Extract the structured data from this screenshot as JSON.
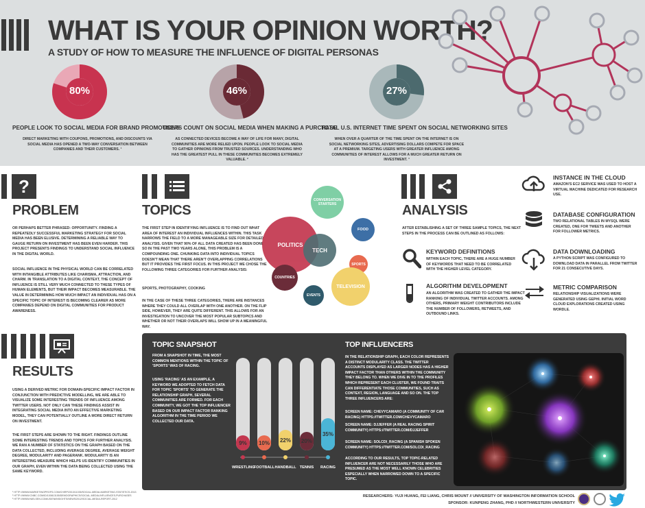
{
  "header": {
    "title": "WHAT IS YOUR OPINION WORTH?",
    "subtitle": "A STUDY OF HOW TO MEASURE THE INFLUENCE OF DIGITAL PERSONAS"
  },
  "stats": [
    {
      "value": "80%",
      "percent": 80,
      "color": "#c8334f",
      "track": "#e9a8b6",
      "heading": "PEOPLE LOOK TO SOCIAL MEDIA FOR BRAND PROMOTIONS",
      "text": "DIRECT MARKETING WITH COUPONS, PROMOTIONS, AND DISCOUNTS VIA SOCIAL MEDIA HAS OPENED A TWO-WAY CONVERSATION BETWEEN COMPANIES AND THEIR CUSTOMERS. ¹"
    },
    {
      "value": "46%",
      "percent": 46,
      "color": "#6a2a35",
      "track": "#b7a3a8",
      "heading": "USERS COUNT ON SOCIAL MEDIA WHEN MAKING A PURCHASE",
      "text": "AS CONNECTED DEVICES BECOME A WAY OF LIFE FOR MANY, DIGITAL COMMUNITIES ARE MORE RELIED UPON. PEOPLE LOOK TO SOCIAL MEDIA TO GATHER OPINIONS FROM TRUSTED SOURCES. UNDERSTANDING WHO HAS THE GREATEST PULL IN THESE COMMUNITIES BECOMES EXTREMELY VALUABLE. ²"
    },
    {
      "value": "27%",
      "percent": 27,
      "color": "#4c6a6e",
      "track": "#a9b8ba",
      "heading": "TOTAL U.S. INTERNET TIME SPENT ON SOCIAL NETWORKING SITES",
      "text": "WHEN OVER A QUARTER OF THE TIME SPENT ON THE INTERNET IS ON SOCIAL NETWORKING SITES, ADVERTISING DOLLARS COMPETE FOR SPACE AT A PREMIUM. TARGETING USERS WITH GREATER INFLUENCE AMONG COMMUNITIES OF INTEREST ALLOWS FOR A MUCH GREATER RETURN ON INVESTMENT. ³"
    }
  ],
  "problem": {
    "icon": "question-icon",
    "heading": "PROBLEM",
    "p1": "OR PERHAPS BETTER PHRASED: OPPORTUNITY. FINDING A REPEATEDLY SUCCESSFUL MARKETING STRATEGY FOR SOCIAL MEDIA HAS BEEN ELUSIVE. DETERMINING A RELIABLE WAY TO GAUGE RETURN ON INVESTMENT HAS BEEN EVEN HARDER. THIS PROJECT PRESENTS FINDINGS TO UNDERSTAND SOCIAL INFLUENCE IN THE DIGITAL WORLD.",
    "p2": "SOCIAL INFLUENCE IN THE PHYSICAL WORLD CAN BE CORRELATED WITH INTANGIBLE ATTRIBUTES LIKE CHARISMA, ATTRACTION, AND CHARM. IN TRANSLATION TO A DIGITAL CONTEXT, THE CONCEPT OF INFLUENCE IS STILL VERY MUCH CONNECTED TO THESE TYPES OF HUMAN ELEMENTS, BUT THEIR IMPACT BECOMES MEASURABLE. THE VALUE IN DETERMINING HOW MUCH IMPACT AN INDIVIDUAL HAS ON A SPECIFIC TOPIC OF INTEREST IS BECOMING CLEARER AS MORE COMPANIES DEPEND ON DIGITAL COMMUNITIES FOR PRODUCT AWARENESS."
  },
  "topics": {
    "icon": "list-icon",
    "heading": "TOPICS",
    "p1": "THE FIRST STEP IN IDENTIFYING INFLUENCE IS TO FIND OUT WHAT AREA OF INTEREST AN INDIVIDUAL INFLUENCES WITHIN. THIS TASK NARROWS THE FIELD TO A MORE MANAGEABLE SIZE FOR DETAILED ANALYSIS. GIVEN THAT 90% OF ALL DATA CREATED HAS BEEN DONE SO IN THE PAST TWO YEARS ALONE, THIS PROBLEM IS A COMPOUNDING ONE. CHUNKING DATA INTO INDIVIDUAL TOPICS DOESN'T MEAN THAT THERE AREN'T OVERLAPPING CORRELATIONS BUT IT PROVIDES THE FIRST FOCUS. IN THIS PROJECT WE CHOSE THE FOLLOWING THREE CATEGORIES FOR FURTHER ANALYSIS:",
    "p2": "SPORTS, PHOTOGRAPHY, COOKING",
    "p3": "IN THE CASE OF THESE THREE CATEGORIES, THERE ARE INSTANCES WHERE THEY COULD ALL OVERLAP WITH ONE ANOTHER. ON THE FLIP SIDE, HOWEVER, THEY ARE QUITE DIFFERENT. THIS ALLOWS FOR AN INVESTIGATION TO UNCOVER THE MOST POPULAR SUBTOPICS AND WHETHER OR NOT THEIR OVERLAPS WILL SHOW UP IN A MEANINGFUL WAY.",
    "bubbles": [
      {
        "label": "POLITICS",
        "color": "#c3374f"
      },
      {
        "label": "TECH",
        "color": "#4f6e73"
      },
      {
        "label": "CONVERSATION STARTERS",
        "color": "#7fcfa5"
      },
      {
        "label": "FOOD",
        "color": "#3d6fa6"
      },
      {
        "label": "SPORTS",
        "color": "#e86a4f"
      },
      {
        "label": "TELEVISION",
        "color": "#f1d16c"
      },
      {
        "label": "COUNTRIES",
        "color": "#6b2c39"
      },
      {
        "label": "EVENTS",
        "color": "#2f5a6b"
      }
    ]
  },
  "analysis": {
    "icon": "share-icon",
    "heading": "ANALYSIS",
    "intro": "AFTER ESTABLISHING A SET OF THREE SAMPLE TOPICS, THE NEXT STEPS IN THE PROCESS CAN BE OUTLINED AS FOLLOWS:",
    "items": [
      {
        "icon": "magnifier-icon",
        "title": "KEYWORD DEFINITIONS",
        "text": "WITHIN EACH TOPIC, THERE ARE A HUGE NUMBER OF KEYWORDS THAT NEED TO BE CORRELATED WITH THE HIGHER LEVEL CATEGORY."
      },
      {
        "icon": "test-tube-icon",
        "title": "ALGORITHM DEVELOPMENT",
        "text": "AN ALGORITHM WAS CREATED TO GATHER THE IMPACT RANKING OF INDIVIDUAL TWITTER ACCOUNTS. AMONG OTHERS, PRIMARY WEIGHT CONTRIBUTORS INCLUDE THE NUMBER OF FOLLOWERS, RETWEETS, AND OUTBOUND LINKS."
      }
    ],
    "steps": [
      {
        "icon": "cloud-upload-icon",
        "title": "INSTANCE IN THE CLOUD",
        "text": "AMAZON'S EC2 SERVICE WAS USED TO HOST A VIRTUAL MACHINE DEDICATED FOR RESEARCH USE."
      },
      {
        "icon": "database-icon",
        "title": "DATABASE CONFIGURATION",
        "text": "TWO RELATIONAL TABLES IN MYSQL WERE CREATED, ONE FOR TWEETS AND ANOTHER FOR FOLLOWER METRICS."
      },
      {
        "icon": "cloud-download-icon",
        "title": "DATA DOWNLOADING",
        "text": "A PYTHON SCRIPT WAS CONFIGURED TO DOWNLOAD DATA IN PARALLEL FROM TWITTER FOR 21 CONSECUTIVE DAYS."
      },
      {
        "icon": "compare-arrows-icon",
        "title": "METRIC COMPARISON",
        "text": "RELATIONSHIP VISUALIZATIONS WERE GENERATED USING GEPHI. INITIAL WORD CLOUD EXPLORATIONS CREATED USING WORDLE."
      }
    ]
  },
  "results": {
    "icon": "presentation-icon",
    "heading": "RESULTS",
    "p1": "USING A DERIVED METRIC FOR DOMAIN-SPECIFIC IMPACT FACTOR IN CONJUNCTION WITH PREDICTIVE MODELLING, WE ARE ABLE TO VISUALIZE SOME INTERESTING TRENDS OF INFLUENCE AMONG TWITTER USERS. NOT ONLY CAN THESE FINDINGS ASSIST IN INTEGRATING SOCIAL MEDIA INTO AN EFFECTIVE MARKETING MODEL, THEY CAN POTENTIALLY OUTLINE A MORE DIRECT RETURN ON INVESTMENT.",
    "p2": "THE FIRST STEPS ARE SHOWN TO THE RIGHT. FINDINGS OUTLINE SOME INTERESTING TRENDS AND TOPICS FOR FURTHER ANALYSIS. WE RAN A NUMBER OF STATISTICS ON THE GRAPH BASED ON THE DATA COLLECTED, INCLUDING AVERAGE DEGREE, AVERAGE WEIGHT DEGREE, MODULARITY AND PAGERANK. MODULARITY IS AN INTERESTING MEASURE WHICH HELPS US IDENTIFY COMMUNITIES IN OUR GRAPH, EVEN WITHIN THE DATA BEING COLLECTED USING THE SAME KEYWORD."
  },
  "snapshot": {
    "heading": "TOPIC SNAPSHOT",
    "p1": "FROM A SNAPSHOT IN TIME, THE MOST COMMON MENTIONS WITHIN THE TOPIC OF 'SPORTS' WAS OF RACING.",
    "p2": "USING 'RACING' AS AN EXAMPLE, A KEYWORD WE ADOPTED TO FETCH DATA FOR TOPIC 'SPORTS' TO GENERATE THE RELATIONSHIP GRAPH, SEVERAL COMMUNITIES ARE FORMED. FOR EACH COMMUNITY, WE GOT THE TOP INFLUENCER BASED ON OUR IMPACT FACTOR RANKING ALGORITHM IN THE TIME PERIOD WE COLLECTED OUR DATA."
  },
  "chart_data": {
    "type": "bar",
    "categories": [
      "WRESTLING",
      "FOOTBALL",
      "HANDBALL",
      "TENNIS",
      "RACING"
    ],
    "values": [
      9,
      10,
      22,
      20,
      35
    ],
    "value_labels": [
      "9%",
      "10%",
      "22%",
      "20%",
      "35%"
    ],
    "colors": [
      "#c3374f",
      "#e86a4f",
      "#f1d16c",
      "#6b2c39",
      "#4bb5d6"
    ],
    "ylim": [
      0,
      100
    ]
  },
  "influencers": {
    "heading": "TOP INFLUENCERS",
    "p1": "IN THE RELATIONSHIP GRAPH, EACH COLOR REPRESENTS A DISTINCT MODULARITY CLASS. THE TWITTER ACCOUNTS DISPLAYED AS LARGER NODES HAS A HIGHER IMPACT FACTOR THAN OTHERS WITHIN THE COMMUNITY THEY BELONG TO. WHEN WE DIVE IN TO THE PROFILES WHICH REPRESENT EACH CLUSTER, WE FOUND TRAITS CAN DIFFERENTIATE THOSE COMMUNITIES, SUCH AS CONTEXT, REGION, LANGUAGE AND SO ON. THE TOP THREE INFLUENCERS ARE:",
    "list": [
      "SCREEN NAME: CHEVYCAMARO (A COMMUNITY OF CAR RACING) HTTPS://TWITTER.COM/CHEVYCAMARO",
      "SCREEN NAME: DJJEFFER (A REAL RACING SPIRIT COMMUNITY) HTTPS://TWITTER.COM/DJJEFFER",
      "SCREEN NAME: SOLCDI_RACING (A SPANISH SPOKEN COMMUNITY) HTTPS://TWITTER.COM/SOLCDI_RACING"
    ],
    "p2": "ACCORDING TO OUR RESULTS, TOP TOPIC-RELATED INFLUENCER ARE NOT NECESSARILY THOSE WHO ARE PRESUMED AS THE MOST WELL KNOWN CELEBRITIES ESPECIALLY WHEN NARROWED DOWN TO A SPECIFIC TOPIC."
  },
  "footnotes": [
    "¹ HTTP://WWW.MARKETINGPROFS.COM/CHIRP/2013/11035/SOCIAL-MEDIA-MARKETING-STATISTICS-2013",
    "² HTTP://WWW.CNBC.COM/ID/100813155/DEMOGRAPHICS/SOCIAL-MEDIA-INFLUENCES-PURCHASES",
    "³ HTTP://WWW.NIELSEN.COM/US/EN/INSIGHTS/NEWS/2012/SOCIAL-MEDIA-REPORT-2012"
  ],
  "credits": {
    "researchers": "RESEARCHERS: YUJI HUANG, FEI LIANG, CHRIS MOUNT // UNIVERSITY OF WASHINGTON INFORMATION SCHOOL",
    "sponsor": "SPONSOR: KUNPENG ZHANG, PHD // NORTHWESTERN UNIVERSITY"
  }
}
